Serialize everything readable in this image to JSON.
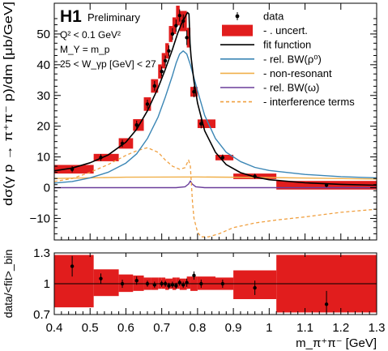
{
  "chart_data": [
    {
      "type": "line",
      "experiment": "H1",
      "status": "Preliminary",
      "conditions": [
        "Q² < 0.1 GeV²",
        "M_Y = m_p",
        "25 < W_γp [GeV] < 27"
      ],
      "ylabel": "dσ(γ p → π⁺π⁻ p)/dm [μb/GeV]",
      "xlim": [
        0.4,
        1.3
      ],
      "ylim": [
        -17,
        60
      ],
      "yticks": [
        -10,
        0,
        10,
        20,
        30,
        40,
        50
      ],
      "ytick_labels": [
        "−10",
        "0",
        "10",
        "20",
        "30",
        "40",
        "50"
      ],
      "legend_position": "top-right",
      "legend": [
        {
          "label": "data",
          "style": "marker",
          "color": "#000000"
        },
        {
          "label": "- . uncert.",
          "style": "box",
          "color": "#e11d1d"
        },
        {
          "label": "fit function",
          "style": "line",
          "color": "#000000"
        },
        {
          "label": "- rel. BW(ρ⁰)",
          "style": "line",
          "color": "#3b86b5"
        },
        {
          "label": "- non-resonant",
          "style": "line",
          "color": "#f0b04a"
        },
        {
          "label": "- rel. BW(ω)",
          "style": "line",
          "color": "#6a3d9a"
        },
        {
          "label": "- interference terms",
          "style": "dashed",
          "color": "#f0a040"
        }
      ],
      "series": [
        {
          "name": "data",
          "x": [
            0.45,
            0.53,
            0.59,
            0.63,
            0.66,
            0.68,
            0.7,
            0.71,
            0.72,
            0.73,
            0.74,
            0.75,
            0.76,
            0.77,
            0.79,
            0.81,
            0.87,
            0.96,
            1.16
          ],
          "y": [
            6.0,
            9.8,
            14.4,
            20.4,
            27.2,
            33.1,
            37.8,
            41.3,
            44.5,
            50.0,
            52.7,
            56.0,
            54.2,
            48.8,
            31.2,
            20.8,
            9.8,
            3.7,
            0.8
          ],
          "y_err": [
            1.0,
            1.1,
            1.2,
            1.4,
            1.4,
            1.6,
            1.6,
            1.7,
            1.8,
            1.9,
            2.0,
            2.0,
            2.2,
            2.4,
            1.8,
            1.5,
            1.0,
            0.8,
            0.6
          ]
        },
        {
          "name": "uncert.",
          "x_lo": [
            0.4,
            0.51,
            0.58,
            0.62,
            0.65,
            0.67,
            0.69,
            0.7,
            0.71,
            0.72,
            0.73,
            0.74,
            0.75,
            0.77,
            0.78,
            0.8,
            0.85,
            0.9,
            1.02
          ],
          "x_hi": [
            0.51,
            0.58,
            0.62,
            0.65,
            0.67,
            0.69,
            0.7,
            0.71,
            0.72,
            0.73,
            0.74,
            0.75,
            0.77,
            0.78,
            0.8,
            0.85,
            0.9,
            1.02,
            1.3
          ],
          "y_lo": [
            4.6,
            8.6,
            12.7,
            18.5,
            25.0,
            30.9,
            35.5,
            38.8,
            42.0,
            47.4,
            50.0,
            52.8,
            50.9,
            45.6,
            29.6,
            19.4,
            8.9,
            2.8,
            -0.6
          ],
          "y_hi": [
            7.4,
            11.0,
            16.1,
            22.3,
            29.4,
            35.3,
            40.1,
            43.8,
            47.0,
            52.6,
            55.4,
            59.2,
            57.5,
            52.0,
            32.8,
            22.2,
            10.7,
            4.6,
            2.2
          ]
        },
        {
          "name": "fit function",
          "x": [
            0.4,
            0.45,
            0.5,
            0.55,
            0.6,
            0.63,
            0.66,
            0.69,
            0.71,
            0.73,
            0.745,
            0.755,
            0.765,
            0.772,
            0.776,
            0.779,
            0.782,
            0.79,
            0.8,
            0.82,
            0.85,
            0.88,
            0.92,
            0.96,
            1.0,
            1.1,
            1.2,
            1.3
          ],
          "y": [
            5.5,
            6.4,
            8.1,
            10.6,
            14.8,
            19.0,
            25.0,
            32.5,
            38.5,
            45.0,
            50.4,
            53.3,
            55.5,
            57.0,
            56.5,
            47.0,
            42.5,
            34.5,
            27.5,
            18.5,
            11.5,
            7.5,
            4.9,
            3.5,
            2.6,
            1.6,
            1.1,
            0.8
          ]
        },
        {
          "name": "rel. BW(ρ⁰)",
          "x": [
            0.4,
            0.45,
            0.5,
            0.55,
            0.6,
            0.63,
            0.66,
            0.69,
            0.71,
            0.73,
            0.74,
            0.75,
            0.76,
            0.77,
            0.78,
            0.8,
            0.82,
            0.85,
            0.88,
            0.92,
            0.96,
            1.0,
            1.1,
            1.2,
            1.3
          ],
          "y": [
            1.5,
            2.0,
            3.2,
            5.0,
            8.0,
            11.0,
            16.0,
            23.0,
            29.5,
            36.5,
            40.5,
            43.5,
            44.5,
            43.5,
            40.0,
            31.5,
            23.5,
            16.0,
            11.5,
            8.5,
            6.6,
            5.6,
            4.3,
            3.6,
            3.2
          ]
        },
        {
          "name": "non-resonant",
          "x": [
            0.4,
            0.6,
            0.8,
            1.0,
            1.3
          ],
          "y": [
            3.0,
            3.4,
            3.5,
            3.3,
            2.8
          ]
        },
        {
          "name": "rel. BW(ω)",
          "x": [
            0.4,
            0.74,
            0.765,
            0.775,
            0.78,
            0.785,
            0.795,
            0.82,
            1.3
          ],
          "y": [
            0.0,
            0.0,
            0.3,
            1.2,
            2.2,
            1.2,
            0.3,
            0.0,
            0.0
          ]
        },
        {
          "name": "interference terms",
          "x": [
            0.4,
            0.45,
            0.5,
            0.55,
            0.6,
            0.63,
            0.66,
            0.69,
            0.71,
            0.73,
            0.75,
            0.765,
            0.775,
            0.78,
            0.786,
            0.79,
            0.8,
            0.81,
            0.83,
            0.86,
            0.9,
            0.96,
            1.02,
            1.1,
            1.2,
            1.3
          ],
          "y": [
            2.0,
            3.0,
            5.0,
            7.5,
            10.5,
            12.0,
            13.0,
            11.5,
            9.0,
            7.0,
            6.0,
            6.5,
            9.0,
            7.0,
            -5.0,
            -10.0,
            -14.5,
            -16.0,
            -16.0,
            -15.0,
            -13.0,
            -11.5,
            -10.5,
            -9.5,
            -8.0,
            -7.0
          ]
        }
      ]
    },
    {
      "type": "scatter",
      "ylabel": "data/<fit>_bin",
      "xlabel": "m_π⁺π⁻ [GeV]",
      "xlim": [
        0.4,
        1.3
      ],
      "ylim": [
        0.7,
        1.3
      ],
      "xticks": [
        0.4,
        0.5,
        0.6,
        0.7,
        0.8,
        0.9,
        1.0,
        1.1,
        1.2,
        1.3
      ],
      "xtick_labels": [
        "0.4",
        "0.5",
        "0.6",
        "0.7",
        "0.8",
        "0.9",
        "1",
        "1.1",
        "1.2",
        "1.3"
      ],
      "yticks": [
        0.7,
        1.0,
        1.3
      ],
      "ytick_labels": [
        "0.7",
        "1",
        "1.3"
      ],
      "reference_line": 1.0,
      "series": [
        {
          "name": "ratio",
          "x": [
            0.45,
            0.53,
            0.59,
            0.63,
            0.66,
            0.68,
            0.7,
            0.71,
            0.72,
            0.73,
            0.74,
            0.75,
            0.76,
            0.77,
            0.79,
            0.81,
            0.87,
            0.96,
            1.16
          ],
          "y": [
            1.17,
            1.05,
            1.0,
            1.03,
            1.0,
            0.99,
            1.0,
            1.0,
            0.98,
            0.99,
            0.98,
            1.01,
            0.99,
            1.01,
            1.08,
            1.0,
            1.0,
            0.96,
            0.8
          ],
          "y_err": [
            0.1,
            0.05,
            0.04,
            0.04,
            0.03,
            0.03,
            0.03,
            0.03,
            0.03,
            0.03,
            0.03,
            0.03,
            0.03,
            0.04,
            0.04,
            0.04,
            0.04,
            0.07,
            0.13
          ]
        },
        {
          "name": "uncert.",
          "x_lo": [
            0.4,
            0.51,
            0.58,
            0.62,
            0.65,
            0.67,
            0.69,
            0.7,
            0.71,
            0.72,
            0.73,
            0.74,
            0.75,
            0.77,
            0.78,
            0.8,
            0.85,
            0.9,
            1.02
          ],
          "x_hi": [
            0.51,
            0.58,
            0.62,
            0.65,
            0.67,
            0.69,
            0.7,
            0.71,
            0.72,
            0.73,
            0.74,
            0.75,
            0.77,
            0.78,
            0.8,
            0.85,
            0.9,
            1.02,
            1.3
          ],
          "y_lo": [
            0.77,
            0.88,
            0.92,
            0.93,
            0.94,
            0.94,
            0.95,
            0.95,
            0.94,
            0.95,
            0.94,
            0.95,
            0.94,
            0.95,
            0.93,
            0.94,
            0.94,
            0.85,
            0.72
          ],
          "y_hi": [
            1.28,
            1.14,
            1.09,
            1.08,
            1.06,
            1.06,
            1.06,
            1.06,
            1.05,
            1.05,
            1.06,
            1.06,
            1.05,
            1.07,
            1.07,
            1.07,
            1.06,
            1.13,
            1.28
          ]
        }
      ]
    }
  ]
}
